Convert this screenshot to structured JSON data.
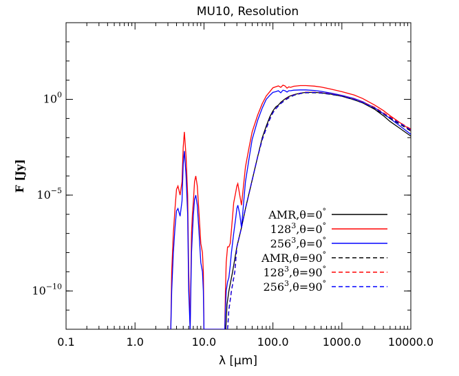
{
  "chart_data": {
    "type": "line",
    "title": "MU10, Resolution",
    "xlabel": "λ [μm]",
    "ylabel": "F [Jy]",
    "x_scale": "log",
    "y_scale": "log",
    "xlim": [
      0.1,
      10000.0
    ],
    "ylim": [
      1e-12,
      10000.0
    ],
    "x_ticks": [
      {
        "value": 0.1,
        "label": "0.1"
      },
      {
        "value": 1.0,
        "label": "1.0"
      },
      {
        "value": 10.0,
        "label": "10.0"
      },
      {
        "value": 100.0,
        "label": "100.0"
      },
      {
        "value": 1000.0,
        "label": "1000.0"
      },
      {
        "value": 10000.0,
        "label": "10000.0"
      }
    ],
    "y_ticks": [
      {
        "value": 1.0,
        "base": "10",
        "exp": "0"
      },
      {
        "value": 1e-05,
        "base": "10",
        "exp": "−5"
      },
      {
        "value": 1e-10,
        "base": "10",
        "exp": "−10"
      }
    ],
    "legend_position": "bottom-right",
    "series": [
      {
        "name": "AMR,θ=0°",
        "legend": {
          "base": "AMR,θ=0",
          "sup": "°",
          "sup_pos": "end"
        },
        "color": "#000000",
        "dash": "solid",
        "x": [
          20.7,
          21.6,
          23,
          26,
          30,
          35,
          40,
          50,
          60,
          70,
          80,
          90,
          100,
          110,
          120,
          130,
          150,
          170,
          200,
          250,
          300,
          400,
          500,
          700,
          1000,
          1500,
          2000,
          3000,
          4000,
          5000,
          7000,
          10000
        ],
        "y": [
          1e-12,
          2e-11,
          1e-10,
          1e-09,
          2e-08,
          2e-07,
          2e-06,
          6e-05,
          0.001,
          0.01,
          0.04,
          0.12,
          0.25,
          0.4,
          0.5,
          0.7,
          1.05,
          1.4,
          1.75,
          2.1,
          2.3,
          2.3,
          2.2,
          1.85,
          1.45,
          0.95,
          0.65,
          0.3,
          0.14,
          0.07,
          0.03,
          0.012
        ]
      },
      {
        "name": "128³,θ=0°",
        "legend": {
          "pre": "128",
          "sup1": "3",
          "base": ",θ=0",
          "sup": "°",
          "sup_pos": "end"
        },
        "color": "#ff0000",
        "dash": "solid",
        "x": [
          3.3,
          3.4,
          3.6,
          3.8,
          4.0,
          4.2,
          4.5,
          4.8,
          5.0,
          5.2,
          5.5,
          5.8,
          6.0,
          6.3,
          6.6,
          6.8,
          7.0,
          7.3,
          7.6,
          8.0,
          8.5,
          9.0,
          9.5,
          9.8,
          10.0,
          20.0,
          20.5,
          21,
          22,
          23,
          24,
          25,
          27,
          29,
          30,
          31,
          33,
          35,
          37,
          40,
          45,
          50,
          60,
          70,
          80,
          90,
          100,
          110,
          120,
          130,
          140,
          150,
          160,
          170,
          180,
          200,
          250,
          300,
          400,
          500,
          700,
          1000,
          1500,
          2000,
          3000,
          4000,
          5000,
          7000,
          10000
        ],
        "y": [
          1e-12,
          1e-09,
          1e-07,
          2e-06,
          2e-05,
          3e-05,
          1e-05,
          5e-05,
          0.003,
          0.02,
          0.001,
          1e-05,
          1e-09,
          1e-12,
          1e-07,
          1e-06,
          4e-06,
          5e-05,
          0.0001,
          3e-05,
          1e-06,
          3e-08,
          1e-08,
          1e-09,
          1e-12,
          1e-12,
          1e-10,
          3e-09,
          2e-08,
          2e-08,
          3e-08,
          1.5e-07,
          4e-06,
          1.5e-05,
          3e-05,
          4e-05,
          1e-05,
          3e-06,
          2e-05,
          0.0003,
          0.003,
          0.02,
          0.15,
          0.6,
          1.5,
          2.5,
          4,
          4.5,
          5,
          4.2,
          5.5,
          5,
          3.8,
          4.5,
          4.2,
          4.8,
          5.2,
          5.2,
          4.9,
          4.4,
          3.4,
          2.5,
          1.7,
          1.1,
          0.5,
          0.26,
          0.14,
          0.06,
          0.025
        ]
      },
      {
        "name": "256³,θ=0°",
        "legend": {
          "pre": "256",
          "sup1": "3",
          "base": ",θ=0",
          "sup": "°",
          "sup_pos": "end"
        },
        "color": "#0000ff",
        "dash": "solid",
        "x": [
          3.3,
          3.4,
          3.6,
          3.8,
          4.0,
          4.2,
          4.5,
          4.8,
          5.0,
          5.2,
          5.5,
          5.8,
          6.0,
          6.3,
          6.6,
          6.8,
          7.0,
          7.3,
          7.6,
          8.0,
          8.5,
          9.0,
          9.5,
          9.8,
          10.0,
          20.0,
          20.5,
          21,
          22,
          23,
          24,
          25,
          27,
          29,
          30,
          31,
          33,
          35,
          37,
          40,
          45,
          50,
          60,
          70,
          80,
          90,
          100,
          110,
          120,
          130,
          140,
          150,
          160,
          170,
          180,
          200,
          250,
          300,
          400,
          500,
          700,
          1000,
          1500,
          2000,
          3000,
          4000,
          5000,
          7000,
          10000
        ],
        "y": [
          1e-12,
          1e-10,
          1e-08,
          2e-07,
          1.5e-06,
          2e-06,
          8e-07,
          5e-06,
          0.0004,
          0.002,
          0.0001,
          1e-06,
          1e-10,
          1e-12,
          1e-08,
          1e-07,
          8e-07,
          6e-06,
          1e-05,
          3e-06,
          1e-07,
          3e-09,
          1e-09,
          1e-10,
          1e-12,
          1e-12,
          1e-11,
          1e-10,
          3e-10,
          5e-10,
          2e-09,
          1e-08,
          1e-07,
          7e-07,
          2e-06,
          3e-06,
          1e-06,
          2e-07,
          2e-06,
          5e-05,
          0.0008,
          0.008,
          0.08,
          0.35,
          1.0,
          1.6,
          2.3,
          2.5,
          2.8,
          2.2,
          3.0,
          2.8,
          2.4,
          2.8,
          2.8,
          3.0,
          3.1,
          3.1,
          2.9,
          2.6,
          2.1,
          1.6,
          1.1,
          0.75,
          0.36,
          0.18,
          0.1,
          0.04,
          0.015
        ]
      },
      {
        "name": "AMR,θ=90°",
        "legend": {
          "base": "AMR,θ=90",
          "sup": "°",
          "sup_pos": "end"
        },
        "color": "#000000",
        "dash": "dashed",
        "x": [
          22.0,
          23,
          25,
          28,
          30,
          35,
          40,
          50,
          60,
          70,
          80,
          90,
          100,
          110,
          120,
          130,
          150,
          170,
          200,
          250,
          300,
          400,
          500,
          700,
          1000,
          1500,
          2000,
          3000,
          4000,
          5000,
          7000,
          10000
        ],
        "y": [
          1e-12,
          1e-11,
          1e-10,
          1e-09,
          2e-08,
          2e-07,
          2e-06,
          6e-05,
          0.001,
          0.008,
          0.03,
          0.09,
          0.2,
          0.32,
          0.45,
          0.6,
          0.9,
          1.2,
          1.6,
          2.0,
          2.2,
          2.2,
          2.1,
          1.8,
          1.45,
          0.95,
          0.65,
          0.32,
          0.17,
          0.1,
          0.05,
          0.022
        ]
      },
      {
        "name": "128³,θ=90°",
        "legend": {
          "pre": "128",
          "sup1": "3",
          "base": ",θ=90",
          "sup": "°",
          "sup_pos": "end"
        },
        "color": "#ff0000",
        "dash": "dashed",
        "x": [
          22.0,
          23,
          25,
          28,
          30,
          35,
          40,
          50,
          60,
          70,
          80,
          90,
          100,
          110,
          120,
          130,
          150,
          170,
          200,
          250,
          300,
          400,
          500,
          700,
          1000,
          1500,
          2000,
          3000,
          4000,
          5000,
          7000,
          10000
        ],
        "y": [
          1e-12,
          1e-11,
          1e-10,
          1e-09,
          2e-08,
          2e-07,
          2e-06,
          6e-05,
          0.001,
          0.008,
          0.03,
          0.09,
          0.2,
          0.32,
          0.45,
          0.62,
          0.95,
          1.3,
          1.7,
          2.1,
          2.35,
          2.35,
          2.25,
          1.95,
          1.55,
          1.05,
          0.72,
          0.38,
          0.2,
          0.12,
          0.06,
          0.028
        ]
      },
      {
        "name": "256³,θ=90°",
        "legend": {
          "pre": "256",
          "sup1": "3",
          "base": ",θ=90",
          "sup": "°",
          "sup_pos": "end"
        },
        "color": "#0000ff",
        "dash": "dashed",
        "x": [
          22.0,
          23,
          25,
          28,
          30,
          35,
          40,
          50,
          60,
          70,
          80,
          90,
          100,
          110,
          120,
          130,
          150,
          170,
          200,
          250,
          300,
          400,
          500,
          700,
          1000,
          1500,
          2000,
          3000,
          4000,
          5000,
          7000,
          10000
        ],
        "y": [
          1e-12,
          1e-11,
          1e-10,
          1e-09,
          2e-08,
          2e-07,
          2e-06,
          6e-05,
          0.001,
          0.008,
          0.03,
          0.09,
          0.2,
          0.32,
          0.45,
          0.61,
          0.92,
          1.25,
          1.65,
          2.05,
          2.28,
          2.28,
          2.18,
          1.88,
          1.5,
          1.0,
          0.68,
          0.35,
          0.18,
          0.11,
          0.055,
          0.025
        ]
      }
    ]
  }
}
